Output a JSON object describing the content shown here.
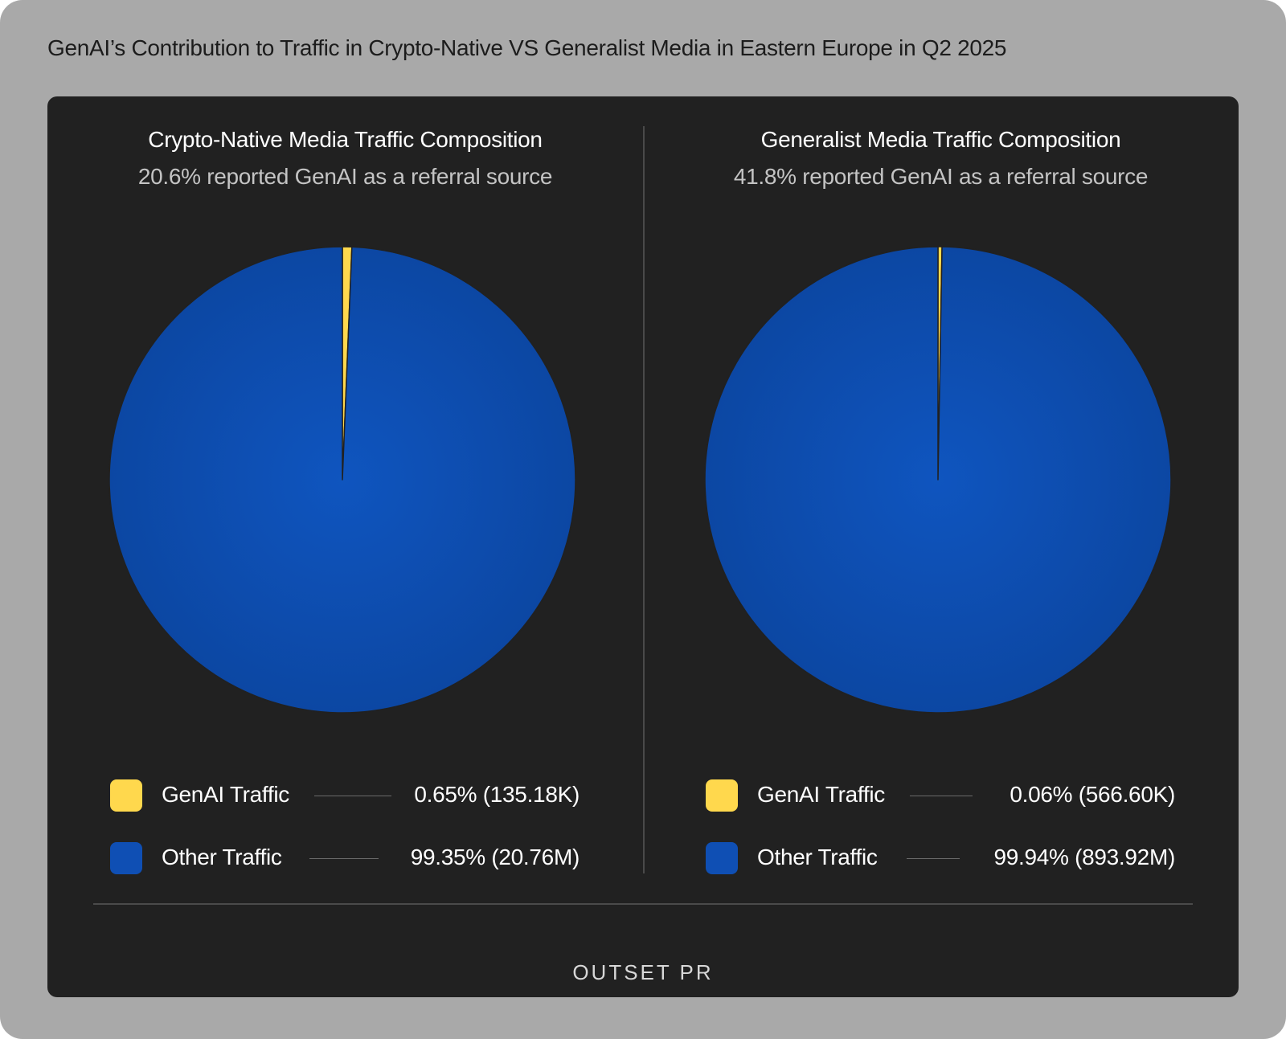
{
  "page": {
    "title": "GenAI’s Contribution to Traffic in Crypto-Native VS Generalist Media in Eastern Europe in Q2 2025",
    "brand": "OUTSET PR"
  },
  "colors": {
    "genai": "#ffd84d",
    "other_outer": "#0c47a3",
    "other_inner": "#0f55bf",
    "background": "#212121"
  },
  "chart_data": [
    {
      "type": "pie",
      "title": "Crypto-Native Media Traffic Composition",
      "subtitle": "20.6% reported GenAI as a referral source",
      "categories": [
        "GenAI Traffic",
        "Other Traffic"
      ],
      "values": [
        0.65,
        99.35
      ],
      "value_labels": [
        "0.65% (135.18K)",
        "99.35% (20.76M)"
      ],
      "counts": [
        "135.18K",
        "20.76M"
      ],
      "colors": [
        "#ffd84d",
        "#0f4fb4"
      ],
      "legend_position": "bottom"
    },
    {
      "type": "pie",
      "title": "Generalist Media Traffic Composition",
      "subtitle": "41.8% reported GenAI as a referral source",
      "categories": [
        "GenAI Traffic",
        "Other Traffic"
      ],
      "values": [
        0.06,
        99.94
      ],
      "value_labels": [
        "0.06% (566.60K)",
        "99.94% (893.92M)"
      ],
      "counts": [
        "566.60K",
        "893.92M"
      ],
      "colors": [
        "#ffd84d",
        "#0f4fb4"
      ],
      "legend_position": "bottom"
    }
  ]
}
